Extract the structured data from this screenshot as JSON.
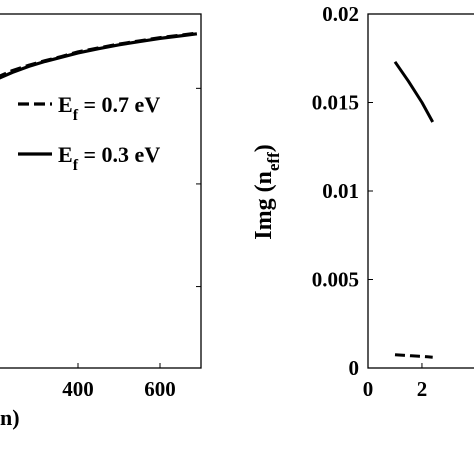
{
  "chart_data": [
    {
      "type": "line",
      "panel": "left",
      "x_ticks": [
        "400",
        "600"
      ],
      "partial_xlabel": "n)",
      "xlim": [
        200,
        700
      ],
      "ylim": [
        0,
        1
      ],
      "legend_placement": "right",
      "grid": false,
      "series": [
        {
          "name": "E_f = 0.7 eV",
          "name_parts": [
            "E",
            "f",
            " = 0.7 eV"
          ],
          "style": "dashed",
          "x": [
            200,
            240,
            280,
            320,
            360,
            400,
            450,
            500,
            550,
            600,
            650,
            690
          ],
          "y": [
            0.82,
            0.84,
            0.855,
            0.868,
            0.88,
            0.893,
            0.904,
            0.915,
            0.924,
            0.933,
            0.94,
            0.946
          ]
        },
        {
          "name": "E_f = 0.3 eV",
          "name_parts": [
            "E",
            "f",
            " = 0.3 eV"
          ],
          "style": "solid",
          "x": [
            200,
            240,
            280,
            320,
            360,
            400,
            450,
            500,
            550,
            600,
            650,
            690
          ],
          "y": [
            0.815,
            0.835,
            0.852,
            0.866,
            0.878,
            0.89,
            0.902,
            0.913,
            0.922,
            0.931,
            0.938,
            0.944
          ]
        }
      ]
    },
    {
      "type": "line",
      "panel": "right",
      "ylabel_parts": [
        "Img (n",
        "eff",
        ")"
      ],
      "y_ticks": [
        "0.02",
        "0.015",
        "0.01",
        "0.005",
        "0"
      ],
      "x_ticks": [
        "0",
        "2"
      ],
      "ylim": [
        0,
        0.02
      ],
      "xlim": [
        0,
        4.3
      ],
      "grid": false,
      "series": [
        {
          "style": "solid",
          "x": [
            1.0,
            1.5,
            2.0,
            2.4
          ],
          "y": [
            0.0173,
            0.0162,
            0.015,
            0.0139
          ]
        },
        {
          "style": "dashed",
          "x": [
            1.0,
            1.3,
            1.6,
            1.9,
            2.2,
            2.4
          ],
          "y": [
            0.00075,
            0.00072,
            0.00069,
            0.00066,
            0.00063,
            0.00061
          ]
        }
      ]
    }
  ]
}
